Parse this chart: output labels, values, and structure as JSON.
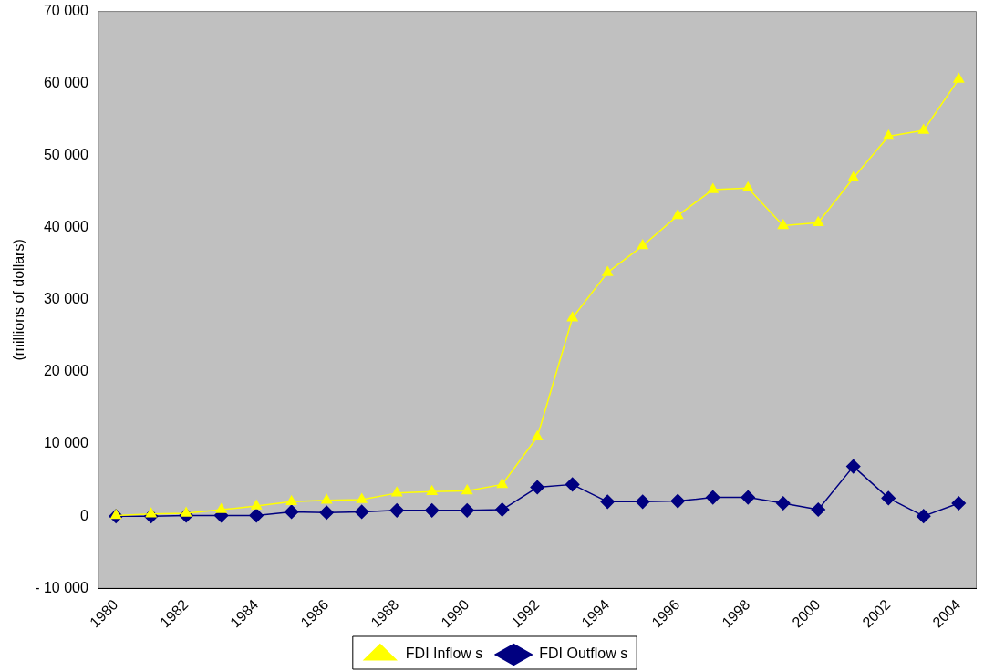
{
  "chart_data": {
    "type": "line",
    "ylabel": "(millions of dollars)",
    "categories": [
      "1980",
      null,
      "1982",
      null,
      "1984",
      null,
      "1986",
      null,
      "1988",
      null,
      "1990",
      null,
      "1992",
      null,
      "1994",
      null,
      "1996",
      null,
      "1998",
      null,
      "2000",
      null,
      "2002",
      null,
      "2004"
    ],
    "series": [
      {
        "name": "FDI Inflow s",
        "color": "#ffff00",
        "marker": "triangle",
        "values": [
          100,
          300,
          400,
          900,
          1400,
          2000,
          2200,
          2300,
          3200,
          3400,
          3500,
          4400,
          11000,
          27500,
          33800,
          37500,
          41700,
          45300,
          45500,
          40300,
          40700,
          46900,
          52700,
          53500,
          60600
        ]
      },
      {
        "name": "FDI Outflow s",
        "color": "#000080",
        "marker": "diamond",
        "values": [
          0,
          0,
          100,
          100,
          100,
          600,
          500,
          600,
          800,
          800,
          800,
          900,
          4000,
          4400,
          2000,
          2000,
          2100,
          2600,
          2600,
          1800,
          900,
          6900,
          2500,
          0,
          1800
        ]
      }
    ],
    "ylim": [
      -10000,
      70000
    ],
    "yticks": [
      {
        "value": -10000,
        "label": "- 10 000"
      },
      {
        "value": 0,
        "label": "0"
      },
      {
        "value": 10000,
        "label": "10 000"
      },
      {
        "value": 20000,
        "label": "20 000"
      },
      {
        "value": 30000,
        "label": "30 000"
      },
      {
        "value": 40000,
        "label": "40 000"
      },
      {
        "value": 50000,
        "label": "50 000"
      },
      {
        "value": 60000,
        "label": "60 000"
      },
      {
        "value": 70000,
        "label": "70 000"
      }
    ],
    "grid": false,
    "legend": "bottom",
    "line_style": "solid"
  }
}
